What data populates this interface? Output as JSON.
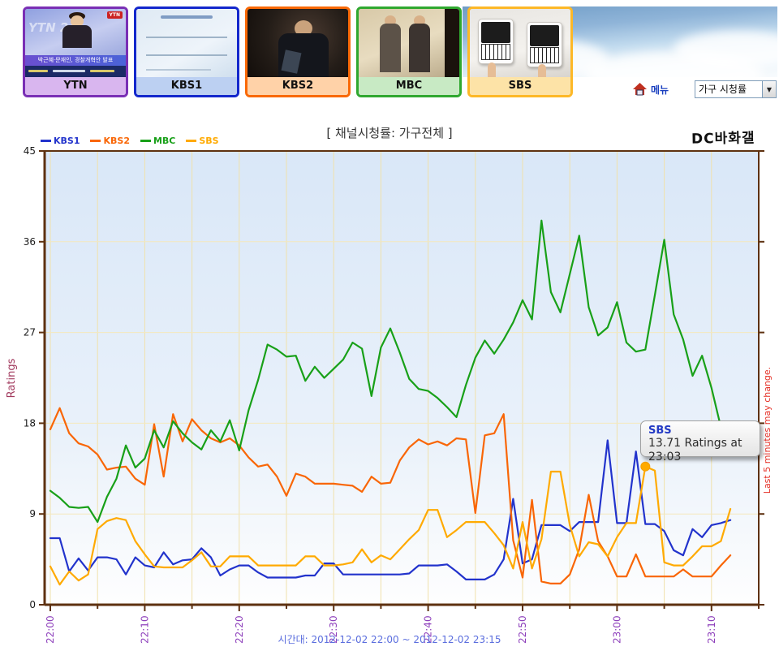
{
  "channels": [
    {
      "id": "ytn",
      "label": "YTN",
      "border": "#7a2fb5",
      "label_bg": "#d9b6ef",
      "logo": "YTN",
      "watermark": "YTN 24",
      "headline": "박근혜·문재인, 경찰개혁안 발표"
    },
    {
      "id": "kbs1",
      "label": "KBS1",
      "border": "#1327cc",
      "label_bg": "#bcd0f2"
    },
    {
      "id": "kbs2",
      "label": "KBS2",
      "border": "#f96907",
      "label_bg": "#ffd2a8"
    },
    {
      "id": "mbc",
      "label": "MBC",
      "border": "#2fa82f",
      "label_bg": "#c8eac4"
    },
    {
      "id": "sbs",
      "label": "SBS",
      "border": "#fdb827",
      "label_bg": "#fde3a7"
    }
  ],
  "menu": {
    "home_icon": "home-icon",
    "menu_label": "메뉴",
    "select_value": "가구 시청률",
    "arrow": "▼"
  },
  "chart": {
    "title": "[ 채널시청률: 가구전체 ]",
    "watermark": "DC바화갤",
    "ylabel": "Ratings",
    "right_note": "Last 5 minutes may change.",
    "footer": "시간대: 2012-12-02 22:00 ~ 2012-12-02 23:15",
    "tooltip": {
      "channel": "SBS",
      "text": "13.71 Ratings at 23:03",
      "time": "23:03",
      "value": 13.71
    }
  },
  "chart_data": {
    "type": "line",
    "title": "[ 채널시청률: 가구전체 ]",
    "xlabel": "시간대",
    "ylabel": "Ratings",
    "ylim": [
      0,
      45
    ],
    "y_ticks": [
      0,
      9,
      18,
      27,
      36,
      45
    ],
    "x_major_ticks": [
      "22:00",
      "22:10",
      "22:20",
      "22:30",
      "22:40",
      "22:50",
      "23:00",
      "23:10"
    ],
    "x_range": [
      "22:00",
      "23:15"
    ],
    "grid": true,
    "legend_position": "top-left",
    "times": [
      "22:00",
      "22:01",
      "22:02",
      "22:03",
      "22:04",
      "22:05",
      "22:06",
      "22:07",
      "22:08",
      "22:09",
      "22:10",
      "22:11",
      "22:12",
      "22:13",
      "22:14",
      "22:15",
      "22:16",
      "22:17",
      "22:18",
      "22:19",
      "22:20",
      "22:21",
      "22:22",
      "22:23",
      "22:24",
      "22:25",
      "22:26",
      "22:27",
      "22:28",
      "22:29",
      "22:30",
      "22:31",
      "22:32",
      "22:33",
      "22:34",
      "22:35",
      "22:36",
      "22:37",
      "22:38",
      "22:39",
      "22:40",
      "22:41",
      "22:42",
      "22:43",
      "22:44",
      "22:45",
      "22:46",
      "22:47",
      "22:48",
      "22:49",
      "22:50",
      "22:51",
      "22:52",
      "22:53",
      "22:54",
      "22:55",
      "22:56",
      "22:57",
      "22:58",
      "22:59",
      "23:00",
      "23:01",
      "23:02",
      "23:03",
      "23:04",
      "23:05",
      "23:06",
      "23:07",
      "23:08",
      "23:09",
      "23:10",
      "23:11",
      "23:12"
    ],
    "series": [
      {
        "name": "KBS1",
        "color": "#2233cc",
        "values": [
          6.6,
          6.6,
          3.3,
          4.6,
          3.4,
          4.7,
          4.7,
          4.5,
          3.0,
          4.7,
          3.9,
          3.7,
          5.2,
          4.0,
          4.4,
          4.5,
          5.6,
          4.7,
          2.9,
          3.5,
          3.9,
          3.9,
          3.2,
          2.7,
          2.7,
          2.7,
          2.7,
          2.9,
          2.9,
          4.1,
          4.1,
          3.0,
          3.0,
          3.0,
          3.0,
          3.0,
          3.0,
          3.0,
          3.1,
          3.9,
          3.9,
          3.9,
          4.0,
          3.3,
          2.5,
          2.5,
          2.5,
          3.0,
          4.5,
          10.5,
          4.1,
          4.5,
          7.9,
          7.9,
          7.9,
          7.3,
          8.2,
          8.2,
          8.2,
          16.3,
          8.1,
          8.1,
          15.2,
          8.0,
          8.0,
          7.3,
          5.4,
          4.9,
          7.5,
          6.7,
          7.9,
          8.1,
          8.4
        ]
      },
      {
        "name": "KBS2",
        "color": "#f96606",
        "values": [
          17.4,
          19.5,
          17.0,
          16.0,
          15.7,
          14.9,
          13.4,
          13.6,
          13.7,
          12.5,
          11.9,
          17.9,
          12.7,
          18.9,
          16.2,
          18.4,
          17.3,
          16.5,
          16.1,
          16.5,
          15.8,
          14.6,
          13.7,
          13.9,
          12.7,
          10.8,
          13.0,
          12.7,
          12.0,
          12.0,
          12.0,
          11.9,
          11.8,
          11.2,
          12.7,
          12.0,
          12.1,
          14.3,
          15.6,
          16.4,
          15.9,
          16.2,
          15.8,
          16.5,
          16.4,
          9.1,
          16.8,
          17.0,
          18.9,
          6.4,
          2.7,
          10.4,
          2.3,
          2.1,
          2.1,
          3.0,
          5.5,
          10.9,
          6.3,
          4.8,
          2.8,
          2.8,
          5.0,
          2.8,
          2.8,
          2.8,
          2.8,
          3.5,
          2.8,
          2.8,
          2.8,
          3.9,
          4.9
        ]
      },
      {
        "name": "MBC",
        "color": "#18a018",
        "values": [
          11.3,
          10.6,
          9.7,
          9.6,
          9.7,
          8.2,
          10.7,
          12.5,
          15.8,
          13.6,
          14.5,
          17.3,
          15.6,
          18.2,
          17.0,
          16.1,
          15.4,
          17.3,
          16.2,
          18.3,
          15.3,
          19.3,
          22.3,
          25.8,
          25.3,
          24.6,
          24.7,
          22.2,
          23.6,
          22.5,
          23.4,
          24.3,
          26.0,
          25.4,
          20.7,
          25.5,
          27.4,
          25.0,
          22.4,
          21.4,
          21.2,
          20.5,
          19.6,
          18.6,
          21.8,
          24.5,
          26.2,
          24.9,
          26.3,
          28.0,
          30.2,
          28.3,
          38.1,
          31.0,
          29.0,
          32.8,
          36.6,
          29.5,
          26.7,
          27.5,
          30.0,
          26.0,
          25.1,
          25.3,
          30.7,
          36.2,
          28.8,
          26.3,
          22.7,
          24.7,
          21.5,
          17.6,
          null
        ]
      },
      {
        "name": "SBS",
        "color": "#ffaa00",
        "values": [
          3.8,
          2.0,
          3.3,
          2.4,
          3.0,
          7.5,
          8.3,
          8.6,
          8.4,
          6.3,
          5.0,
          3.8,
          3.7,
          3.7,
          3.7,
          4.4,
          5.2,
          3.8,
          3.8,
          4.8,
          4.8,
          4.8,
          3.9,
          3.9,
          3.9,
          3.9,
          3.9,
          4.8,
          4.8,
          3.9,
          3.9,
          4.0,
          4.2,
          5.5,
          4.2,
          4.9,
          4.5,
          5.5,
          6.5,
          7.4,
          9.4,
          9.4,
          6.7,
          7.4,
          8.2,
          8.2,
          8.2,
          7.1,
          5.9,
          3.6,
          8.2,
          3.6,
          6.5,
          13.2,
          13.2,
          7.9,
          4.8,
          6.2,
          6.0,
          4.8,
          6.7,
          8.1,
          8.1,
          13.71,
          13.3,
          4.2,
          3.9,
          3.9,
          4.8,
          5.8,
          5.8,
          6.3,
          9.5
        ]
      }
    ],
    "marker": {
      "series": "SBS",
      "time": "23:03",
      "value": 13.71
    }
  }
}
